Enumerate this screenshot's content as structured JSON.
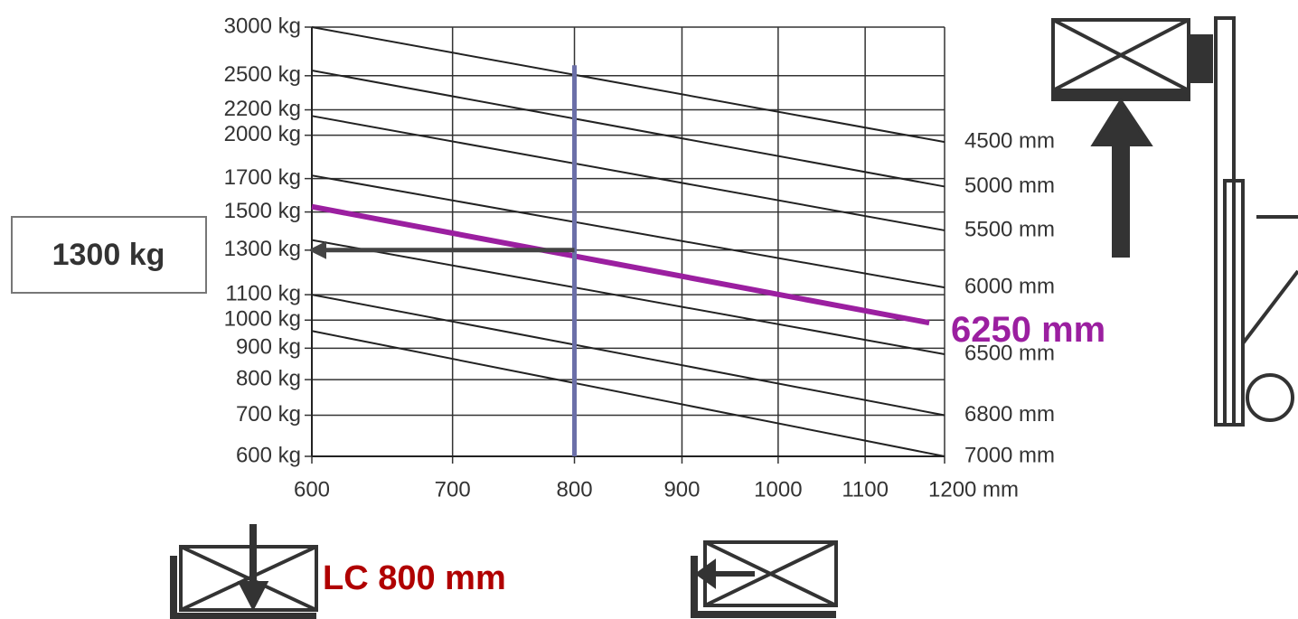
{
  "chart_data": {
    "type": "line",
    "xlog": true,
    "ylog": true,
    "grid": true,
    "xlim": [
      600,
      1200
    ],
    "ylim": [
      600,
      3000
    ],
    "xticks": [
      600,
      700,
      800,
      900,
      1000,
      1100,
      {
        "value": 1200,
        "label": "1200 mm"
      }
    ],
    "yticks": [
      {
        "value": 3000,
        "label": "3000 kg"
      },
      {
        "value": 2500,
        "label": "2500 kg"
      },
      {
        "value": 2200,
        "label": "2200 kg"
      },
      {
        "value": 2000,
        "label": "2000 kg"
      },
      {
        "value": 1700,
        "label": "1700 kg"
      },
      {
        "value": 1500,
        "label": "1500 kg"
      },
      {
        "value": 1300,
        "label": "1300 kg"
      },
      {
        "value": 1100,
        "label": "1100 kg"
      },
      {
        "value": 1000,
        "label": "1000 kg"
      },
      {
        "value": 900,
        "label": "900 kg"
      },
      {
        "value": 800,
        "label": "800 kg"
      },
      {
        "value": 700,
        "label": "700 kg"
      },
      {
        "value": 600,
        "label": "600 kg"
      }
    ],
    "series": [
      {
        "name": "4500 mm",
        "color": "#222222",
        "x": [
          600,
          1200
        ],
        "values": [
          3000,
          1950
        ]
      },
      {
        "name": "5000 mm",
        "color": "#222222",
        "x": [
          600,
          1200
        ],
        "values": [
          2550,
          1650
        ]
      },
      {
        "name": "5500 mm",
        "color": "#222222",
        "x": [
          600,
          1200
        ],
        "values": [
          2150,
          1400
        ]
      },
      {
        "name": "6000 mm",
        "color": "#222222",
        "x": [
          600,
          1200
        ],
        "values": [
          1720,
          1130
        ]
      },
      {
        "name": "6500 mm",
        "color": "#222222",
        "x": [
          600,
          1200
        ],
        "values": [
          1350,
          880
        ]
      },
      {
        "name": "6800 mm",
        "color": "#222222",
        "x": [
          600,
          1200
        ],
        "values": [
          1100,
          700
        ]
      },
      {
        "name": "7000 mm",
        "color": "#222222",
        "x": [
          600,
          1200
        ],
        "values": [
          960,
          600
        ]
      },
      {
        "name": "6250 mm",
        "color": "#9b1fa0",
        "x": [
          600,
          1180
        ],
        "values": [
          1530,
          990
        ]
      },
      {
        "color": "#6b6fa8",
        "x": [
          800,
          800
        ],
        "values": [
          600,
          2600
        ]
      },
      {
        "color": "#444444",
        "x": [
          800,
          600
        ],
        "values": [
          1300,
          1300
        ]
      }
    ],
    "annotations": [
      {
        "text": "1300 kg"
      },
      {
        "text": "LC 800 mm"
      }
    ]
  }
}
